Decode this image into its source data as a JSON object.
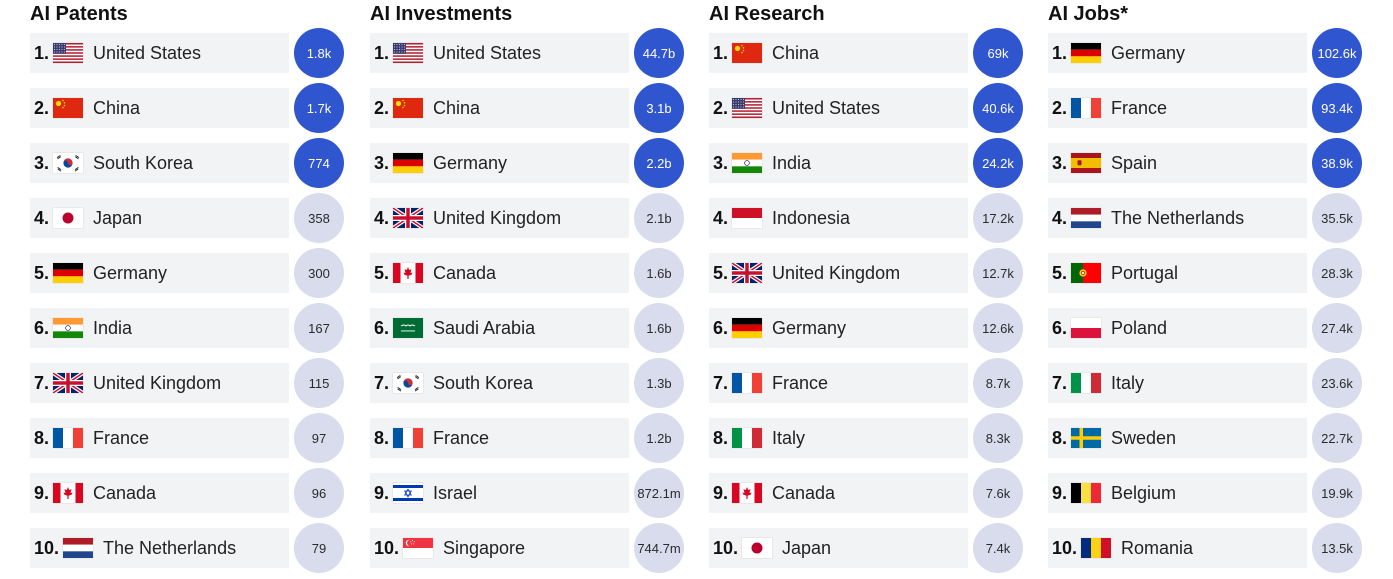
{
  "chart_data": [
    {
      "type": "table",
      "title": "AI Patents",
      "rows": [
        {
          "rank": "1.",
          "country": "United States",
          "flag": "us-flag-icon",
          "value": "1.8k",
          "highlight": true
        },
        {
          "rank": "2.",
          "country": "China",
          "flag": "cn-flag-icon",
          "value": "1.7k",
          "highlight": true
        },
        {
          "rank": "3.",
          "country": "South Korea",
          "flag": "kr-flag-icon",
          "value": "774",
          "highlight": true
        },
        {
          "rank": "4.",
          "country": "Japan",
          "flag": "jp-flag-icon",
          "value": "358",
          "highlight": false
        },
        {
          "rank": "5.",
          "country": "Germany",
          "flag": "de-flag-icon",
          "value": "300",
          "highlight": false
        },
        {
          "rank": "6.",
          "country": "India",
          "flag": "in-flag-icon",
          "value": "167",
          "highlight": false
        },
        {
          "rank": "7.",
          "country": "United Kingdom",
          "flag": "gb-flag-icon",
          "value": "115",
          "highlight": false
        },
        {
          "rank": "8.",
          "country": "France",
          "flag": "fr-flag-icon",
          "value": "97",
          "highlight": false
        },
        {
          "rank": "9.",
          "country": "Canada",
          "flag": "ca-flag-icon",
          "value": "96",
          "highlight": false
        },
        {
          "rank": "10.",
          "country": "The Netherlands",
          "flag": "nl-flag-icon",
          "value": "79",
          "highlight": false
        }
      ]
    },
    {
      "type": "table",
      "title": "AI Investments",
      "rows": [
        {
          "rank": "1.",
          "country": "United States",
          "flag": "us-flag-icon",
          "value": "44.7b",
          "highlight": true
        },
        {
          "rank": "2.",
          "country": "China",
          "flag": "cn-flag-icon",
          "value": "3.1b",
          "highlight": true
        },
        {
          "rank": "3.",
          "country": "Germany",
          "flag": "de-flag-icon",
          "value": "2.2b",
          "highlight": true
        },
        {
          "rank": "4.",
          "country": "United Kingdom",
          "flag": "gb-flag-icon",
          "value": "2.1b",
          "highlight": false
        },
        {
          "rank": "5.",
          "country": "Canada",
          "flag": "ca-flag-icon",
          "value": "1.6b",
          "highlight": false
        },
        {
          "rank": "6.",
          "country": "Saudi Arabia",
          "flag": "sa-flag-icon",
          "value": "1.6b",
          "highlight": false
        },
        {
          "rank": "7.",
          "country": "South Korea",
          "flag": "kr-flag-icon",
          "value": "1.3b",
          "highlight": false
        },
        {
          "rank": "8.",
          "country": "France",
          "flag": "fr-flag-icon",
          "value": "1.2b",
          "highlight": false
        },
        {
          "rank": "9.",
          "country": "Israel",
          "flag": "il-flag-icon",
          "value": "872.1m",
          "highlight": false
        },
        {
          "rank": "10.",
          "country": "Singapore",
          "flag": "sg-flag-icon",
          "value": "744.7m",
          "highlight": false
        }
      ]
    },
    {
      "type": "table",
      "title": "AI Research",
      "rows": [
        {
          "rank": "1.",
          "country": "China",
          "flag": "cn-flag-icon",
          "value": "69k",
          "highlight": true
        },
        {
          "rank": "2.",
          "country": "United States",
          "flag": "us-flag-icon",
          "value": "40.6k",
          "highlight": true
        },
        {
          "rank": "3.",
          "country": "India",
          "flag": "in-flag-icon",
          "value": "24.2k",
          "highlight": true
        },
        {
          "rank": "4.",
          "country": "Indonesia",
          "flag": "id-flag-icon",
          "value": "17.2k",
          "highlight": false
        },
        {
          "rank": "5.",
          "country": "United Kingdom",
          "flag": "gb-flag-icon",
          "value": "12.7k",
          "highlight": false
        },
        {
          "rank": "6.",
          "country": "Germany",
          "flag": "de-flag-icon",
          "value": "12.6k",
          "highlight": false
        },
        {
          "rank": "7.",
          "country": "France",
          "flag": "fr-flag-icon",
          "value": "8.7k",
          "highlight": false
        },
        {
          "rank": "8.",
          "country": "Italy",
          "flag": "it-flag-icon",
          "value": "8.3k",
          "highlight": false
        },
        {
          "rank": "9.",
          "country": "Canada",
          "flag": "ca-flag-icon",
          "value": "7.6k",
          "highlight": false
        },
        {
          "rank": "10.",
          "country": "Japan",
          "flag": "jp-flag-icon",
          "value": "7.4k",
          "highlight": false
        }
      ]
    },
    {
      "type": "table",
      "title": "AI Jobs*",
      "rows": [
        {
          "rank": "1.",
          "country": "Germany",
          "flag": "de-flag-icon",
          "value": "102.6k",
          "highlight": true
        },
        {
          "rank": "2.",
          "country": "France",
          "flag": "fr-flag-icon",
          "value": "93.4k",
          "highlight": true
        },
        {
          "rank": "3.",
          "country": "Spain",
          "flag": "es-flag-icon",
          "value": "38.9k",
          "highlight": true
        },
        {
          "rank": "4.",
          "country": "The Netherlands",
          "flag": "nl-flag-icon",
          "value": "35.5k",
          "highlight": false
        },
        {
          "rank": "5.",
          "country": "Portugal",
          "flag": "pt-flag-icon",
          "value": "28.3k",
          "highlight": false
        },
        {
          "rank": "6.",
          "country": "Poland",
          "flag": "pl-flag-icon",
          "value": "27.4k",
          "highlight": false
        },
        {
          "rank": "7.",
          "country": "Italy",
          "flag": "it-flag-icon",
          "value": "23.6k",
          "highlight": false
        },
        {
          "rank": "8.",
          "country": "Sweden",
          "flag": "se-flag-icon",
          "value": "22.7k",
          "highlight": false
        },
        {
          "rank": "9.",
          "country": "Belgium",
          "flag": "be-flag-icon",
          "value": "19.9k",
          "highlight": false
        },
        {
          "rank": "10.",
          "country": "Romania",
          "flag": "ro-flag-icon",
          "value": "13.5k",
          "highlight": false
        }
      ]
    }
  ],
  "colors": {
    "highlight_badge": "#2f55cf",
    "regular_badge": "#d8dced",
    "row_background": "#f2f3f5"
  }
}
